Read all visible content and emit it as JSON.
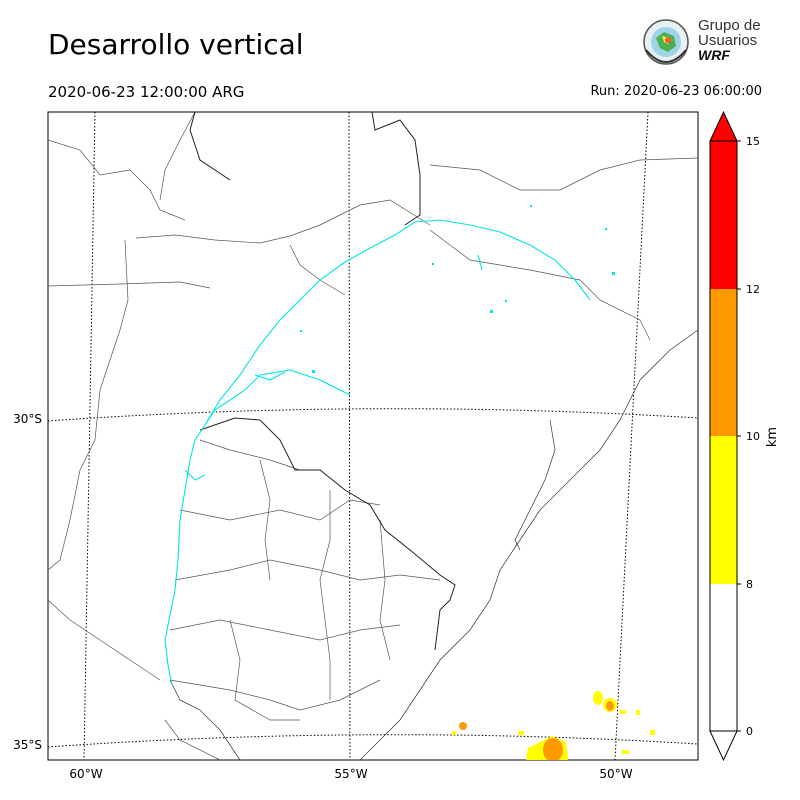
{
  "header": {
    "title": "Desarrollo vertical",
    "valid_time": "2020-06-23 12:00:00 ARG",
    "run_time": "Run: 2020-06-23 06:00:00"
  },
  "logo": {
    "line1": "Grupo de",
    "line2": "Usuarios",
    "line3": "WRF"
  },
  "map": {
    "lon_labels": [
      "60°W",
      "55°W",
      "50°W"
    ],
    "lat_labels": [
      "30°S",
      "35°S"
    ],
    "contour_color": "#00e5e5"
  },
  "colorbar": {
    "label": "km",
    "ticks": [
      "0",
      "8",
      "10",
      "12",
      "15"
    ],
    "colors": [
      "#ffffff",
      "#ffff00",
      "#ff9900",
      "#ff0000"
    ],
    "extend_max": true,
    "extend_min": true
  }
}
